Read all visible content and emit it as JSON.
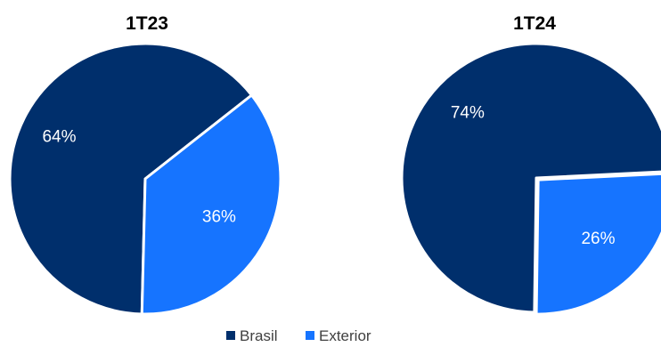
{
  "colors": {
    "brasil": "#002F6C",
    "exterior": "#1674FF",
    "slice_border": "#ffffff"
  },
  "legend": {
    "items": [
      {
        "label": "Brasil",
        "color": "#002F6C"
      },
      {
        "label": "Exterior",
        "color": "#1674FF"
      }
    ]
  },
  "chart_data": [
    {
      "type": "pie",
      "title": "1T23",
      "categories": [
        "Brasil",
        "Exterior"
      ],
      "values": [
        64,
        36
      ],
      "labels": [
        "64%",
        "36%"
      ],
      "colors": [
        "#002F6C",
        "#1674FF"
      ],
      "legend": "bottom"
    },
    {
      "type": "pie",
      "title": "1T24",
      "categories": [
        "Brasil",
        "Exterior"
      ],
      "values": [
        74,
        26
      ],
      "labels": [
        "74%",
        "26%"
      ],
      "colors": [
        "#002F6C",
        "#1674FF"
      ],
      "legend": "bottom"
    }
  ]
}
